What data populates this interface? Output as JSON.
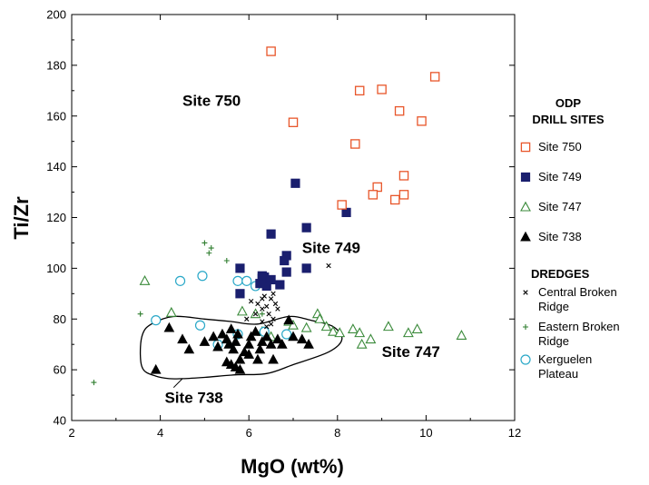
{
  "chart_data": {
    "type": "scatter",
    "xlabel": "MgO (wt%)",
    "ylabel": "Ti/Zr",
    "xlim": [
      2,
      12
    ],
    "ylim": [
      40,
      200
    ],
    "xticks": [
      2,
      4,
      6,
      8,
      10,
      12
    ],
    "yticks": [
      40,
      60,
      80,
      100,
      120,
      140,
      160,
      180,
      200
    ],
    "grid": false,
    "legend_position": "right",
    "legend": {
      "group1_title_line1": "ODP",
      "group1_title_line2": "DRILL SITES",
      "group2_title": "DREDGES",
      "entries": [
        {
          "series": 0,
          "lines": [
            "Site 750"
          ]
        },
        {
          "series": 1,
          "lines": [
            "Site 749"
          ]
        },
        {
          "series": 2,
          "lines": [
            "Site 747"
          ]
        },
        {
          "series": 3,
          "lines": [
            "Site 738"
          ]
        },
        {
          "series": 4,
          "lines": [
            "Central Broken",
            "Ridge"
          ]
        },
        {
          "series": 5,
          "lines": [
            "Eastern Broken",
            "Ridge"
          ]
        },
        {
          "series": 6,
          "lines": [
            "Kerguelen",
            "Plateau"
          ]
        }
      ]
    },
    "annotations": [
      {
        "text": "Site 750",
        "x": 4.5,
        "y": 164
      },
      {
        "text": "Site 749",
        "x": 7.2,
        "y": 106
      },
      {
        "text": "Site 747",
        "x": 9.0,
        "y": 65
      },
      {
        "text": "Site 738",
        "x": 4.1,
        "y": 47
      }
    ],
    "site_738_outline": [
      [
        3.6,
        74
      ],
      [
        3.8,
        78
      ],
      [
        4.3,
        81
      ],
      [
        5.0,
        80
      ],
      [
        5.6,
        79
      ],
      [
        6.2,
        78
      ],
      [
        6.9,
        81
      ],
      [
        7.4,
        79.5
      ],
      [
        7.9,
        77
      ],
      [
        8.1,
        72
      ],
      [
        7.8,
        67
      ],
      [
        7.0,
        62
      ],
      [
        6.4,
        58.5
      ],
      [
        5.7,
        58
      ],
      [
        5.0,
        57
      ],
      [
        4.5,
        56.5
      ],
      [
        4.2,
        56.5
      ],
      [
        3.9,
        57.5
      ],
      [
        3.62,
        60
      ],
      [
        3.55,
        66
      ]
    ],
    "site_738_pointer": [
      [
        4.5,
        56.5
      ],
      [
        4.3,
        53
      ]
    ],
    "series": [
      {
        "name": "Site 750",
        "marker": "square-open",
        "color": "#e8562a",
        "points": [
          [
            6.5,
            185.5
          ],
          [
            7.0,
            157.5
          ],
          [
            8.5,
            170
          ],
          [
            9.0,
            170.5
          ],
          [
            9.4,
            162
          ],
          [
            10.2,
            175.5
          ],
          [
            9.9,
            158
          ],
          [
            8.4,
            149
          ],
          [
            8.9,
            132
          ],
          [
            9.5,
            136.5
          ],
          [
            8.1,
            125
          ],
          [
            8.8,
            129
          ],
          [
            9.3,
            127
          ],
          [
            9.5,
            129
          ]
        ]
      },
      {
        "name": "Site 749",
        "marker": "square-filled",
        "color": "#1a1f6e",
        "points": [
          [
            7.05,
            133.5
          ],
          [
            7.3,
            116
          ],
          [
            8.2,
            122
          ],
          [
            6.5,
            113.5
          ],
          [
            6.85,
            105
          ],
          [
            6.8,
            103
          ],
          [
            6.85,
            98.5
          ],
          [
            7.3,
            100
          ],
          [
            5.8,
            100
          ],
          [
            6.3,
            97
          ],
          [
            6.35,
            96.5
          ],
          [
            6.5,
            95.5
          ],
          [
            6.7,
            93.5
          ],
          [
            6.4,
            93
          ],
          [
            5.8,
            90
          ],
          [
            6.3,
            96
          ],
          [
            6.25,
            94
          ]
        ]
      },
      {
        "name": "Site 747",
        "marker": "triangle-open",
        "color": "#3a8a3a",
        "points": [
          [
            3.65,
            95
          ],
          [
            4.25,
            82.5
          ],
          [
            5.85,
            83
          ],
          [
            6.15,
            82
          ],
          [
            6.9,
            79
          ],
          [
            7.0,
            77.5
          ],
          [
            7.3,
            76.5
          ],
          [
            7.55,
            82
          ],
          [
            7.6,
            80
          ],
          [
            7.75,
            77
          ],
          [
            7.9,
            75
          ],
          [
            8.05,
            74.5
          ],
          [
            8.35,
            76
          ],
          [
            8.5,
            74.5
          ],
          [
            8.55,
            70
          ],
          [
            8.75,
            72
          ],
          [
            9.15,
            77
          ],
          [
            9.6,
            74.5
          ],
          [
            9.8,
            76
          ],
          [
            10.8,
            73.5
          ],
          [
            6.3,
            75
          ],
          [
            6.5,
            73
          ]
        ]
      },
      {
        "name": "Site 738",
        "marker": "triangle-filled",
        "color": "#000000",
        "points": [
          [
            3.9,
            60
          ],
          [
            4.2,
            76.5
          ],
          [
            4.5,
            72
          ],
          [
            4.65,
            68
          ],
          [
            5.0,
            71
          ],
          [
            5.2,
            73
          ],
          [
            5.3,
            69
          ],
          [
            5.4,
            74
          ],
          [
            5.5,
            72
          ],
          [
            5.55,
            70
          ],
          [
            5.6,
            76
          ],
          [
            5.65,
            68
          ],
          [
            5.7,
            71
          ],
          [
            5.75,
            74
          ],
          [
            5.8,
            64
          ],
          [
            5.6,
            62
          ],
          [
            5.7,
            61
          ],
          [
            5.8,
            60
          ],
          [
            5.5,
            63
          ],
          [
            6.0,
            70
          ],
          [
            6.05,
            73
          ],
          [
            6.15,
            75
          ],
          [
            6.25,
            68
          ],
          [
            6.3,
            71
          ],
          [
            6.4,
            73
          ],
          [
            6.5,
            70
          ],
          [
            6.55,
            64
          ],
          [
            6.65,
            72
          ],
          [
            6.75,
            70
          ],
          [
            6.9,
            79.5
          ],
          [
            7.0,
            73
          ],
          [
            7.2,
            72
          ],
          [
            7.35,
            70
          ],
          [
            6.2,
            64
          ],
          [
            6.0,
            66
          ],
          [
            5.9,
            67
          ]
        ]
      },
      {
        "name": "Central Broken Ridge",
        "marker": "x",
        "color": "#000000",
        "points": [
          [
            6.2,
            86
          ],
          [
            6.3,
            84
          ],
          [
            6.4,
            85
          ],
          [
            6.3,
            88
          ],
          [
            6.45,
            82
          ],
          [
            6.5,
            78
          ],
          [
            6.55,
            80
          ],
          [
            6.15,
            82
          ],
          [
            6.3,
            79
          ],
          [
            6.6,
            86
          ],
          [
            6.35,
            89
          ],
          [
            6.5,
            88
          ],
          [
            6.55,
            90
          ],
          [
            7.8,
            101
          ],
          [
            6.05,
            87
          ],
          [
            5.95,
            80
          ],
          [
            6.4,
            77
          ],
          [
            6.65,
            84
          ]
        ]
      },
      {
        "name": "Eastern Broken Ridge",
        "marker": "plus",
        "color": "#2e7d2e",
        "points": [
          [
            2.5,
            55
          ],
          [
            3.55,
            82
          ],
          [
            5.0,
            110
          ],
          [
            5.15,
            108
          ],
          [
            5.1,
            106
          ],
          [
            5.5,
            103
          ],
          [
            6.3,
            82
          ]
        ]
      },
      {
        "name": "Kerguelen Plateau",
        "marker": "circle-open",
        "color": "#2aa8c8",
        "points": [
          [
            3.9,
            79.5
          ],
          [
            4.45,
            95
          ],
          [
            4.9,
            77.5
          ],
          [
            4.95,
            97
          ],
          [
            5.75,
            95
          ],
          [
            5.95,
            95
          ],
          [
            6.15,
            93
          ],
          [
            5.75,
            74
          ],
          [
            6.35,
            75
          ],
          [
            6.85,
            74
          ],
          [
            5.3,
            70
          ]
        ]
      }
    ]
  }
}
